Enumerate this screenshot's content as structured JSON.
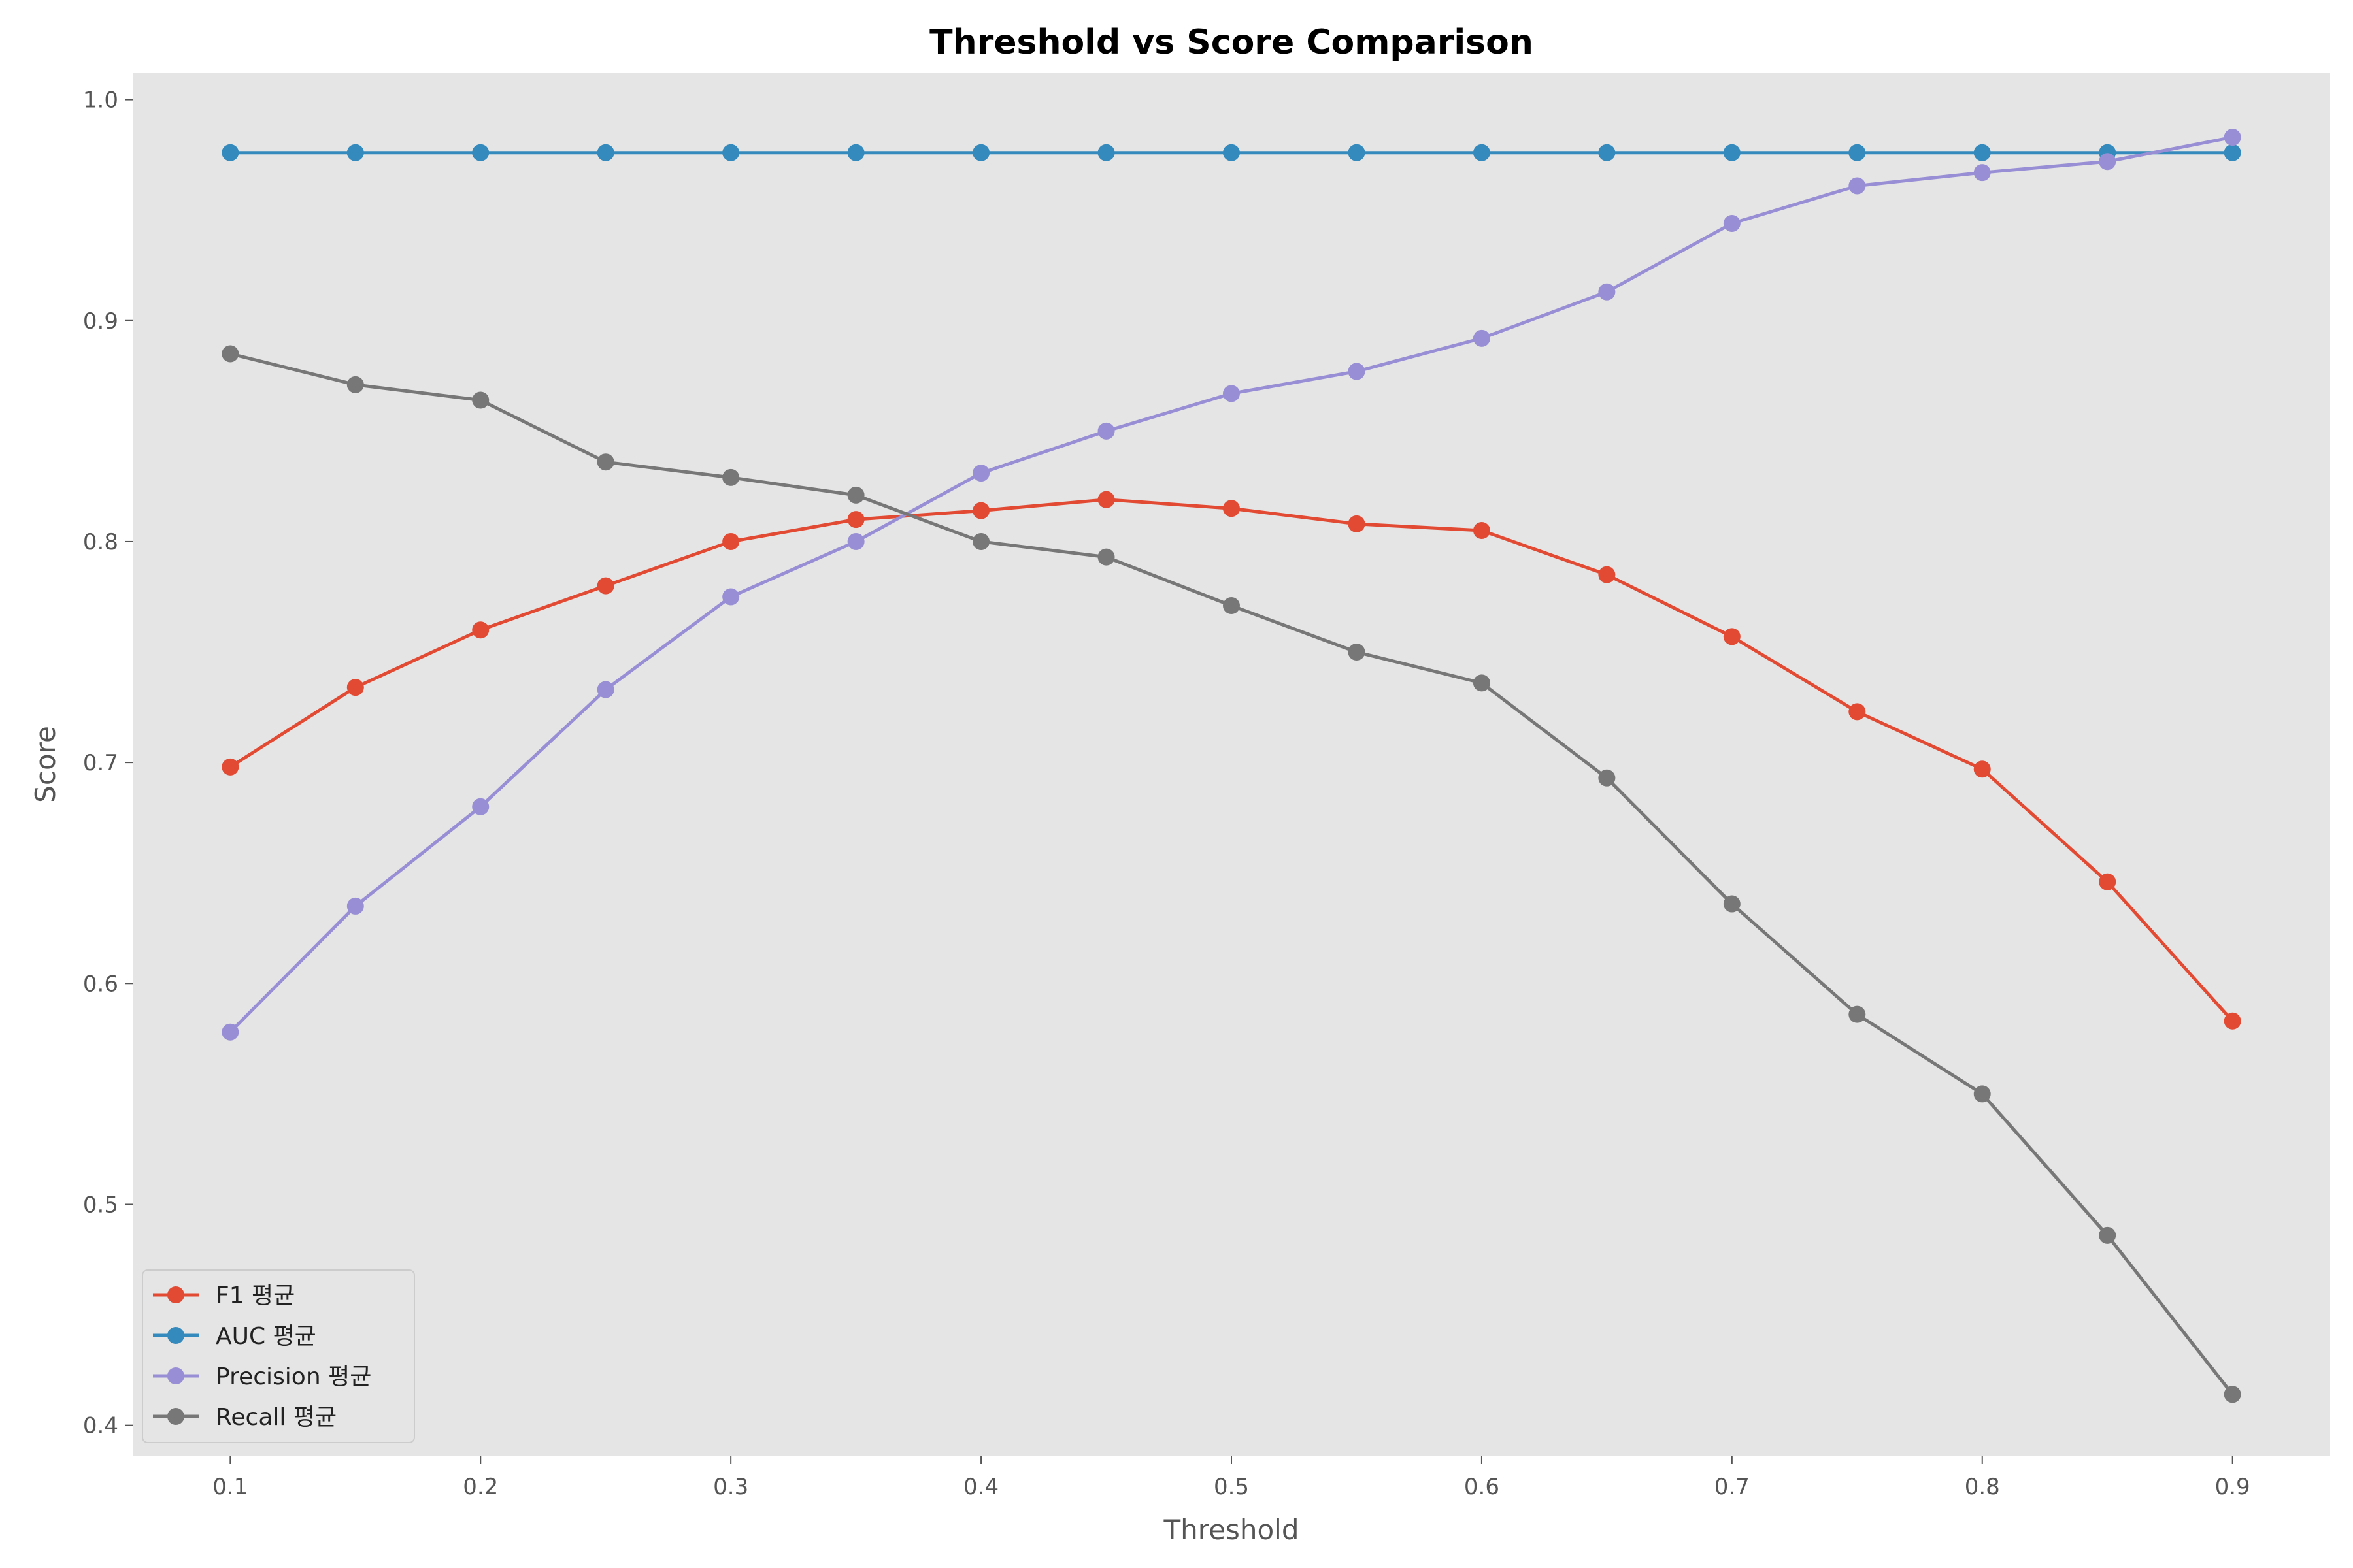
{
  "chart_data": {
    "type": "line",
    "title": "Threshold vs Score Comparison",
    "xlabel": "Threshold",
    "ylabel": "Score",
    "x": [
      0.1,
      0.15,
      0.2,
      0.25,
      0.3,
      0.35,
      0.4,
      0.45,
      0.5,
      0.55,
      0.6,
      0.65,
      0.7,
      0.75,
      0.8,
      0.85,
      0.9
    ],
    "xlim": [
      0.061,
      0.939
    ],
    "ylim": [
      0.386,
      1.012
    ],
    "xticks": [
      0.1,
      0.2,
      0.3,
      0.4,
      0.5,
      0.6,
      0.7,
      0.8,
      0.9
    ],
    "xtick_labels": [
      "0.1",
      "0.2",
      "0.3",
      "0.4",
      "0.5",
      "0.6",
      "0.7",
      "0.8",
      "0.9"
    ],
    "yticks": [
      0.4,
      0.5,
      0.6,
      0.7,
      0.8,
      0.9,
      1.0
    ],
    "ytick_labels": [
      "0.4",
      "0.5",
      "0.6",
      "0.7",
      "0.8",
      "0.9",
      "1.0"
    ],
    "grid": false,
    "legend_position": "bottom-left",
    "background_color": "#e5e5e5",
    "series": [
      {
        "name": "F1 평균",
        "color": "#e24a33",
        "values": [
          0.698,
          0.734,
          0.76,
          0.78,
          0.8,
          0.81,
          0.814,
          0.819,
          0.815,
          0.808,
          0.805,
          0.785,
          0.757,
          0.723,
          0.697,
          0.646,
          0.583
        ]
      },
      {
        "name": "AUC 평균",
        "color": "#348abd",
        "values": [
          0.976,
          0.976,
          0.976,
          0.976,
          0.976,
          0.976,
          0.976,
          0.976,
          0.976,
          0.976,
          0.976,
          0.976,
          0.976,
          0.976,
          0.976,
          0.976,
          0.976
        ]
      },
      {
        "name": "Precision 평균",
        "color": "#988ed5",
        "values": [
          0.578,
          0.635,
          0.68,
          0.733,
          0.775,
          0.8,
          0.831,
          0.85,
          0.867,
          0.877,
          0.892,
          0.913,
          0.944,
          0.961,
          0.967,
          0.972,
          0.983
        ]
      },
      {
        "name": "Recall 평균",
        "color": "#777777",
        "values": [
          0.885,
          0.871,
          0.864,
          0.836,
          0.829,
          0.821,
          0.8,
          0.793,
          0.771,
          0.75,
          0.736,
          0.693,
          0.636,
          0.586,
          0.55,
          0.486,
          0.414
        ]
      }
    ]
  }
}
